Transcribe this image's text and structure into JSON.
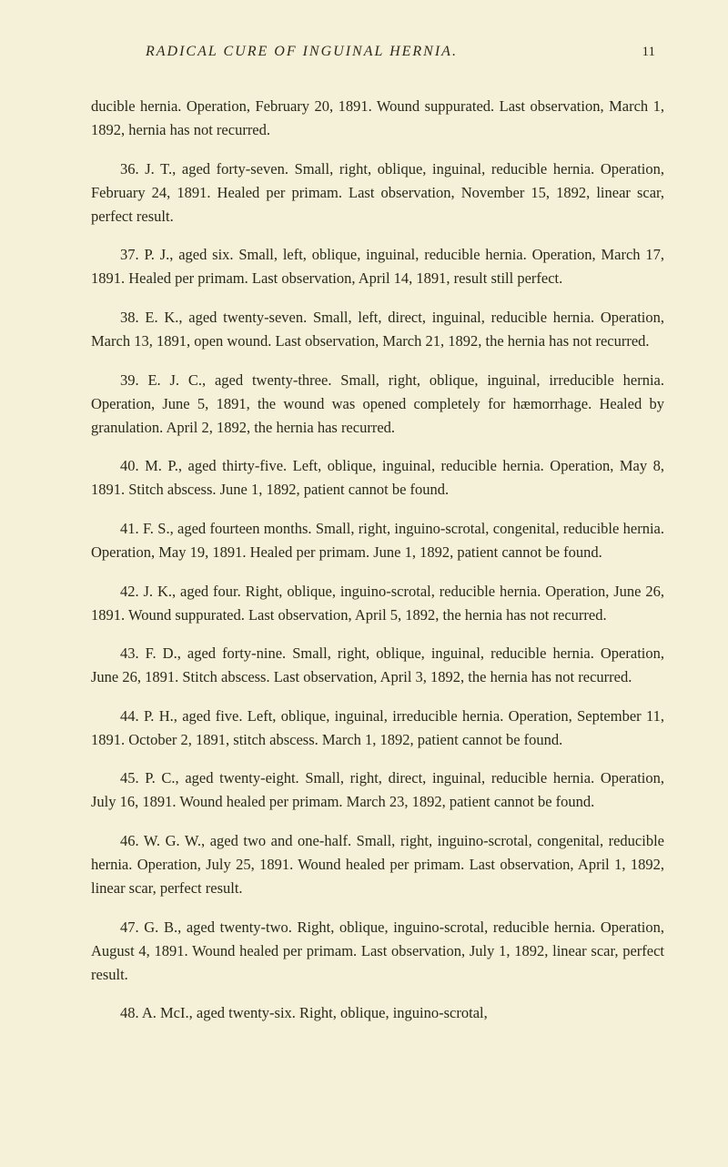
{
  "header": {
    "title": "RADICAL CURE OF INGUINAL HERNIA.",
    "page_number": "11"
  },
  "entries": [
    "ducible hernia. Operation, February 20, 1891. Wound suppurated. Last observation, March 1, 1892, hernia has not recurred.",
    "36. J. T., aged forty-seven. Small, right, oblique, inguinal, reducible hernia. Operation, February 24, 1891. Healed per primam. Last observation, November 15, 1892, linear scar, perfect result.",
    "37. P. J., aged six. Small, left, oblique, inguinal, reducible hernia. Operation, March 17, 1891. Healed per primam. Last observation, April 14, 1891, result still perfect.",
    "38. E. K., aged twenty-seven. Small, left, direct, inguinal, reducible hernia. Operation, March 13, 1891, open wound. Last observation, March 21, 1892, the hernia has not recurred.",
    "39. E. J. C., aged twenty-three. Small, right, oblique, inguinal, irreducible hernia. Operation, June 5, 1891, the wound was opened completely for hæmorrhage. Healed by granulation. April 2, 1892, the hernia has recurred.",
    "40. M. P., aged thirty-five. Left, oblique, inguinal, reducible hernia. Operation, May 8, 1891. Stitch abscess. June 1, 1892, patient cannot be found.",
    "41. F. S., aged fourteen months. Small, right, inguino-scrotal, congenital, reducible hernia. Operation, May 19, 1891. Healed per primam. June 1, 1892, patient cannot be found.",
    "42. J. K., aged four. Right, oblique, inguino-scrotal, reducible hernia. Operation, June 26, 1891. Wound suppurated. Last observation, April 5, 1892, the hernia has not recurred.",
    "43. F. D., aged forty-nine. Small, right, oblique, inguinal, reducible hernia. Operation, June 26, 1891. Stitch abscess. Last observation, April 3, 1892, the hernia has not recurred.",
    "44. P. H., aged five. Left, oblique, inguinal, irreducible hernia. Operation, September 11, 1891. October 2, 1891, stitch abscess. March 1, 1892, patient cannot be found.",
    "45. P. C., aged twenty-eight. Small, right, direct, inguinal, reducible hernia. Operation, July 16, 1891. Wound healed per primam. March 23, 1892, patient cannot be found.",
    "46. W. G. W., aged two and one-half. Small, right, inguino-scrotal, congenital, reducible hernia. Operation, July 25, 1891. Wound healed per primam. Last observation, April 1, 1892, linear scar, perfect result.",
    "47. G. B., aged twenty-two. Right, oblique, inguino-scrotal, reducible hernia. Operation, August 4, 1891. Wound healed per primam. Last observation, July 1, 1892, linear scar, perfect result.",
    "48. A. McI., aged twenty-six. Right, oblique, inguino-scrotal,"
  ]
}
